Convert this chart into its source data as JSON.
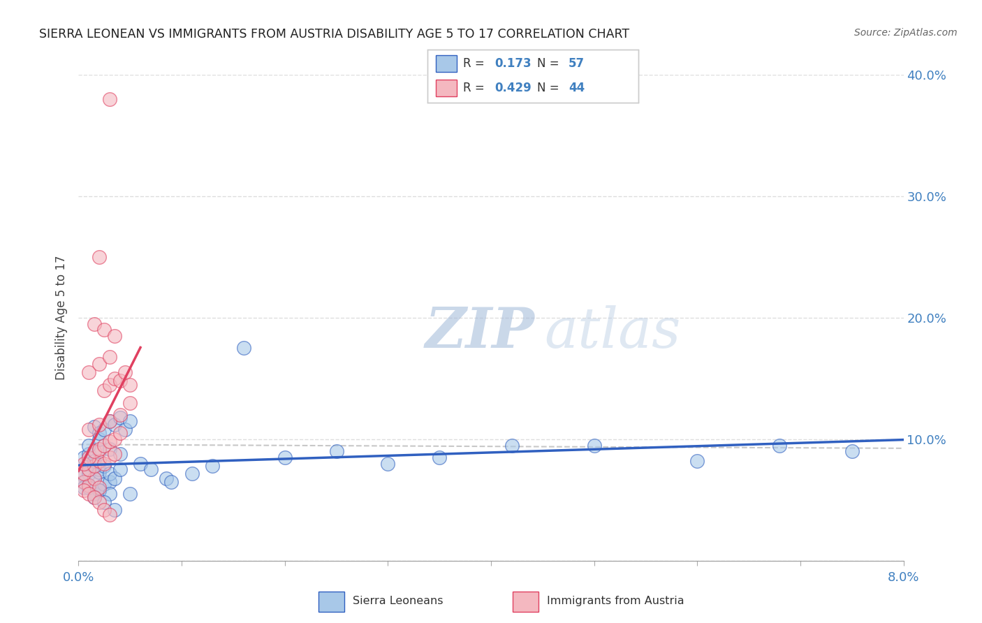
{
  "title": "SIERRA LEONEAN VS IMMIGRANTS FROM AUSTRIA DISABILITY AGE 5 TO 17 CORRELATION CHART",
  "source": "Source: ZipAtlas.com",
  "ylabel": "Disability Age 5 to 17",
  "legend_1_label": "Sierra Leoneans",
  "legend_1_R": "0.173",
  "legend_1_N": "57",
  "legend_2_label": "Immigrants from Austria",
  "legend_2_R": "0.429",
  "legend_2_N": "44",
  "color_blue": "#a8c8e8",
  "color_pink": "#f4b8c0",
  "color_blue_line": "#3060c0",
  "color_pink_line": "#e04060",
  "color_trend_dashed": "#c8c8c8",
  "xlim": [
    0.0,
    0.08
  ],
  "ylim": [
    0.0,
    0.4
  ],
  "yticks": [
    0.0,
    0.1,
    0.2,
    0.3,
    0.4
  ],
  "ytick_labels": [
    "",
    "10.0%",
    "20.0%",
    "30.0%",
    "40.0%"
  ],
  "watermark_zip": "ZIP",
  "watermark_atlas": "atlas",
  "blue_x": [
    0.0005,
    0.001,
    0.0015,
    0.002,
    0.0005,
    0.001,
    0.0015,
    0.002,
    0.0005,
    0.001,
    0.0015,
    0.002,
    0.0025,
    0.003,
    0.0005,
    0.001,
    0.0015,
    0.002,
    0.0025,
    0.003,
    0.0035,
    0.004,
    0.001,
    0.002,
    0.003,
    0.004,
    0.0015,
    0.002,
    0.0025,
    0.003,
    0.0035,
    0.004,
    0.0045,
    0.005,
    0.006,
    0.007,
    0.0085,
    0.009,
    0.011,
    0.013,
    0.016,
    0.02,
    0.025,
    0.03,
    0.035,
    0.042,
    0.05,
    0.06,
    0.068,
    0.075,
    0.001,
    0.002,
    0.003,
    0.0015,
    0.0025,
    0.0035,
    0.005
  ],
  "blue_y": [
    0.07,
    0.072,
    0.068,
    0.075,
    0.065,
    0.08,
    0.078,
    0.073,
    0.06,
    0.062,
    0.055,
    0.058,
    0.063,
    0.065,
    0.085,
    0.088,
    0.082,
    0.09,
    0.078,
    0.072,
    0.068,
    0.075,
    0.095,
    0.1,
    0.092,
    0.088,
    0.11,
    0.105,
    0.108,
    0.115,
    0.112,
    0.118,
    0.108,
    0.115,
    0.08,
    0.075,
    0.068,
    0.065,
    0.072,
    0.078,
    0.175,
    0.085,
    0.09,
    0.08,
    0.085,
    0.095,
    0.095,
    0.082,
    0.095,
    0.09,
    0.06,
    0.058,
    0.055,
    0.052,
    0.048,
    0.042,
    0.055
  ],
  "pink_x": [
    0.0005,
    0.001,
    0.0015,
    0.002,
    0.0005,
    0.001,
    0.0015,
    0.002,
    0.0025,
    0.003,
    0.0005,
    0.001,
    0.0015,
    0.002,
    0.0025,
    0.003,
    0.0035,
    0.0005,
    0.001,
    0.0015,
    0.002,
    0.0025,
    0.003,
    0.0035,
    0.004,
    0.001,
    0.002,
    0.003,
    0.004,
    0.005,
    0.0025,
    0.003,
    0.0035,
    0.004,
    0.0045,
    0.005,
    0.001,
    0.002,
    0.003,
    0.0015,
    0.0025,
    0.0035,
    0.002,
    0.003
  ],
  "pink_y": [
    0.065,
    0.062,
    0.068,
    0.06,
    0.058,
    0.055,
    0.052,
    0.048,
    0.042,
    0.038,
    0.072,
    0.075,
    0.078,
    0.082,
    0.08,
    0.085,
    0.088,
    0.08,
    0.085,
    0.09,
    0.092,
    0.095,
    0.098,
    0.1,
    0.105,
    0.108,
    0.112,
    0.115,
    0.12,
    0.13,
    0.14,
    0.145,
    0.15,
    0.148,
    0.155,
    0.145,
    0.155,
    0.162,
    0.168,
    0.195,
    0.19,
    0.185,
    0.25,
    0.38
  ]
}
